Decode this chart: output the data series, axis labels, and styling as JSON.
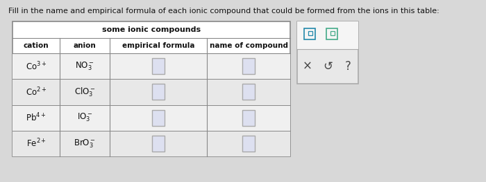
{
  "title_text": "Fill in the name and empirical formula of each ionic compound that could be formed from the ions in this table:",
  "table_title": "some ionic compounds",
  "col_headers": [
    "cation",
    "anion",
    "empirical formula",
    "name of compound"
  ],
  "cations": [
    "Co$^{3+}$",
    "Co$^{2+}$",
    "Pb$^{4+}$",
    "Fe$^{2+}$"
  ],
  "anions": [
    "NO$_3^-$",
    "ClO$_3^-$",
    "IO$_3^-$",
    "BrO$_3^-$"
  ],
  "bg_color": "#d8d8d8",
  "table_bg": "#ffffff",
  "cell_bg_light": "#e8e8e8",
  "border_color": "#888888",
  "text_color": "#111111",
  "title_fontsize": 8.0,
  "header_fontsize": 7.5,
  "cell_fontsize": 8.5,
  "input_box_color": "#dde0f0",
  "input_box_border": "#aaaaaa",
  "side_box_bg": "#e0e0e0",
  "side_box_border": "#aaaaaa",
  "icon_color": "#2288aa",
  "icon2_color": "#44aa88"
}
